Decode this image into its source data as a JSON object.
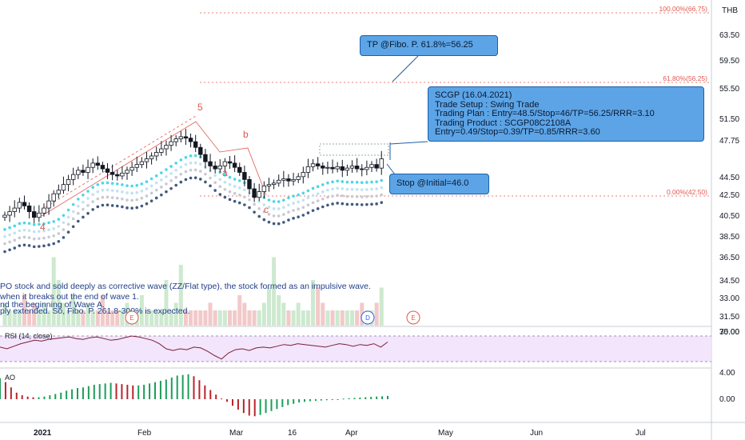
{
  "currency": "THB",
  "price_axis": {
    "labels": [
      "63.50",
      "59.50",
      "55.50",
      "51.50",
      "47.75",
      "44.50",
      "42.50",
      "40.50",
      "38.50",
      "36.50",
      "34.50",
      "33.00",
      "31.50",
      "30.00"
    ]
  },
  "rsi_axis": {
    "labels": [
      "75.00"
    ]
  },
  "ao_axis": {
    "labels": [
      "4.00",
      "0.00"
    ]
  },
  "x_axis": {
    "labels": [
      "2021",
      "Feb",
      "Mar",
      "16",
      "Apr",
      "May",
      "Jun",
      "Jul"
    ]
  },
  "fib": [
    {
      "label": "100.00%(66.75)",
      "value": 66.75
    },
    {
      "label": "61.80%(56.25)",
      "value": 56.25
    },
    {
      "label": "0.00%(42.50)",
      "value": 42.5
    }
  ],
  "wave_labels": {
    "five": "5",
    "a": "a",
    "b": "b",
    "c": "c",
    "four": "4"
  },
  "notes": [
    "PO stock and sold deeply as corrective wave (ZZ/Flat type), the stock formed as an impulsive wave.",
    " when it breaks out the end of wave 1.",
    "nd the beginning of Wave A.",
    "ply extended. So, Fibo. P. 261.8-300% is expected."
  ],
  "event_markers": [
    {
      "text": "E"
    },
    {
      "text": "D"
    },
    {
      "text": "E"
    }
  ],
  "rsi_label": "RSI (14, close)",
  "ao_label": "AO",
  "callouts": {
    "tp": "TP @Fibo. P. 61.8%=56.25",
    "setup": [
      "SCGP (16.04.2021)",
      "Trade Setup : Swing Trade",
      "Trading Plan : Entry=48.5/Stop=46/TP=56.25/RRR=3.10",
      "Trading Product : SCGP08C2108A",
      "Entry=0.49/Stop=0.39/TP=0.85/RRR=3.60"
    ],
    "stop": "Stop @Initial=46.0"
  },
  "colors": {
    "up": "#26a69a",
    "down": "#131722",
    "fib": "#e0584e",
    "callout": "#5ca4e6",
    "rsi_fill": "#f3e5fb",
    "rsi_line": "#7b1f3a"
  },
  "chart_data": {
    "type": "candlestick",
    "symbol": "SCGP",
    "currency": "THB",
    "ylim": [
      30.0,
      68.0
    ],
    "price_path": [
      40.5,
      41.0,
      41.5,
      42.3,
      41.8,
      41.0,
      40.2,
      40.8,
      41.5,
      42.5,
      43.5,
      44.0,
      44.8,
      45.5,
      46.2,
      46.8,
      46.5,
      47.2,
      47.8,
      47.5,
      47.0,
      46.5,
      46.2,
      46.0,
      46.4,
      46.8,
      47.2,
      47.6,
      48.0,
      48.4,
      48.8,
      49.3,
      49.8,
      50.3,
      50.8,
      51.2,
      51.5,
      51.3,
      50.8,
      50.0,
      49.0,
      48.0,
      47.4,
      47.0,
      47.4,
      48.0,
      47.8,
      47.2,
      46.5,
      45.5,
      44.2,
      43.0,
      43.8,
      44.6,
      44.8,
      45.0,
      45.4,
      45.6,
      45.3,
      45.5,
      45.9,
      46.5,
      47.3,
      47.7,
      47.4,
      47.1,
      47.2,
      47.0,
      47.3,
      46.8,
      47.1,
      47.4,
      47.0,
      46.9,
      47.2,
      47.6,
      47.1,
      48.4
    ],
    "rsi": [
      62,
      60,
      63,
      66,
      68,
      70,
      69,
      71,
      72,
      73,
      74,
      72,
      71,
      73,
      74,
      72,
      70,
      71,
      73,
      75,
      74,
      72,
      70,
      66,
      60,
      58,
      60,
      59,
      62,
      61,
      57,
      52,
      48,
      55,
      59,
      60,
      58,
      61,
      62,
      61,
      63,
      65,
      64,
      66,
      65,
      64,
      63,
      62,
      64,
      66,
      65,
      63,
      65,
      64,
      66,
      62,
      68
    ],
    "ao": [
      3.2,
      2.6,
      1.8,
      1.0,
      0.6,
      0.4,
      0.3,
      0.3,
      0.4,
      0.6,
      0.8,
      1.0,
      1.3,
      1.5,
      1.7,
      1.8,
      2.0,
      2.2,
      2.3,
      2.4,
      2.5,
      2.4,
      2.3,
      2.2,
      2.1,
      2.1,
      2.2,
      2.4,
      2.6,
      2.8,
      3.0,
      3.3,
      3.6,
      3.7,
      3.8,
      3.5,
      2.9,
      2.1,
      1.4,
      0.7,
      0.1,
      -0.4,
      -1.0,
      -1.6,
      -2.1,
      -2.5,
      -2.6,
      -2.4,
      -2.1,
      -1.8,
      -1.5,
      -1.2,
      -0.9,
      -0.7,
      -0.5,
      -0.4,
      -0.3,
      -0.25,
      -0.2,
      -0.15,
      -0.1,
      0.0,
      0.1,
      0.15,
      0.2,
      0.25,
      0.3,
      0.35,
      0.4,
      0.45,
      0.5
    ],
    "volume": [
      3,
      2,
      2,
      2,
      4,
      2,
      3,
      2,
      3,
      2,
      9,
      6,
      3,
      2,
      4,
      2,
      2,
      3,
      2,
      2,
      4,
      2,
      2,
      2,
      2,
      3,
      2,
      2,
      4,
      2,
      2,
      2,
      2,
      6,
      2,
      3,
      8,
      2,
      2,
      2,
      2,
      2,
      3,
      2,
      2,
      2,
      2,
      2,
      4,
      3,
      2,
      2,
      2,
      3,
      5,
      9,
      4,
      3,
      2,
      2,
      3,
      2,
      2,
      6,
      5,
      3,
      2,
      2,
      2,
      2,
      2,
      2,
      2,
      3,
      2,
      2,
      3,
      5
    ]
  }
}
